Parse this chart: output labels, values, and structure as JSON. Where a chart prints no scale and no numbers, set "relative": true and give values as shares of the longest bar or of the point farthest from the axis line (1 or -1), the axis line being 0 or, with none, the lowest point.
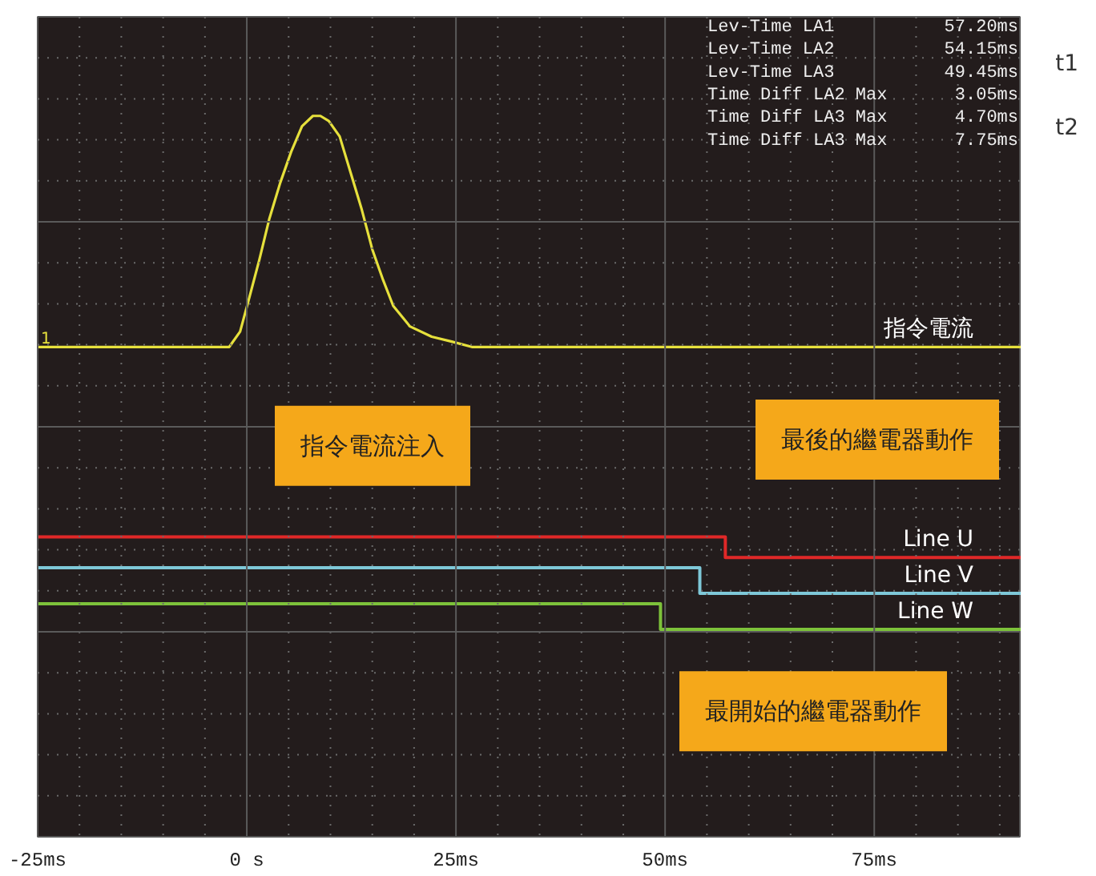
{
  "chart_data": {
    "type": "line",
    "relative": true,
    "xlim": [
      -25,
      92.6
    ],
    "xticks": [
      {
        "value": -25,
        "label": "-25ms"
      },
      {
        "value": 0,
        "label": "0 s"
      },
      {
        "value": 25,
        "label": "25ms"
      },
      {
        "value": 50,
        "label": "50ms"
      },
      {
        "value": 75,
        "label": "75ms"
      }
    ],
    "tick_labels": "x",
    "grid": true,
    "legend": false,
    "series": [
      {
        "name": "指令電流",
        "color": "#e6e03c",
        "x": [
          -25,
          -2.1,
          -0.8,
          0.2,
          1.5,
          2.7,
          4.0,
          5.3,
          6.6,
          7.9,
          8.8,
          9.8,
          11.1,
          12.4,
          13.7,
          15.0,
          16.3,
          17.5,
          19.5,
          22.1,
          24.6,
          26.9,
          92.6
        ],
        "values": [
          0.55,
          0.55,
          0.58,
          0.64,
          0.72,
          0.8,
          0.87,
          0.93,
          0.98,
          1.0,
          1.0,
          0.99,
          0.96,
          0.89,
          0.82,
          0.74,
          0.68,
          0.63,
          0.59,
          0.57,
          0.56,
          0.55,
          0.55
        ]
      },
      {
        "name": "Line U",
        "type": "step",
        "color": "#e02828",
        "x": [
          -25,
          57.2,
          92.6
        ],
        "values": [
          0.18,
          0.14,
          0.14
        ]
      },
      {
        "name": "Line V",
        "type": "step",
        "color": "#7ec8d8",
        "x": [
          -25,
          54.15,
          92.6
        ],
        "values": [
          0.12,
          0.07,
          0.07
        ]
      },
      {
        "name": "Line W",
        "type": "step",
        "color": "#7dc23a",
        "x": [
          -25,
          49.45,
          92.6
        ],
        "values": [
          0.05,
          0.0,
          0.0
        ]
      }
    ],
    "annotations": [
      "Lev-Time LA1 57.20ms",
      "Lev-Time LA2 54.15ms",
      "Lev-Time LA3 49.45ms",
      "Time Diff LA2 Max 3.05ms",
      "Time Diff LA3 Max 4.70ms",
      "Time Diff LA3 Max 7.75ms",
      "t1",
      "t2",
      "指令電流注入",
      "最後的繼電器動作",
      "最開始的繼電器動作",
      {
        "text": "1",
        "x": -25,
        "y": 0.55
      }
    ]
  }
}
